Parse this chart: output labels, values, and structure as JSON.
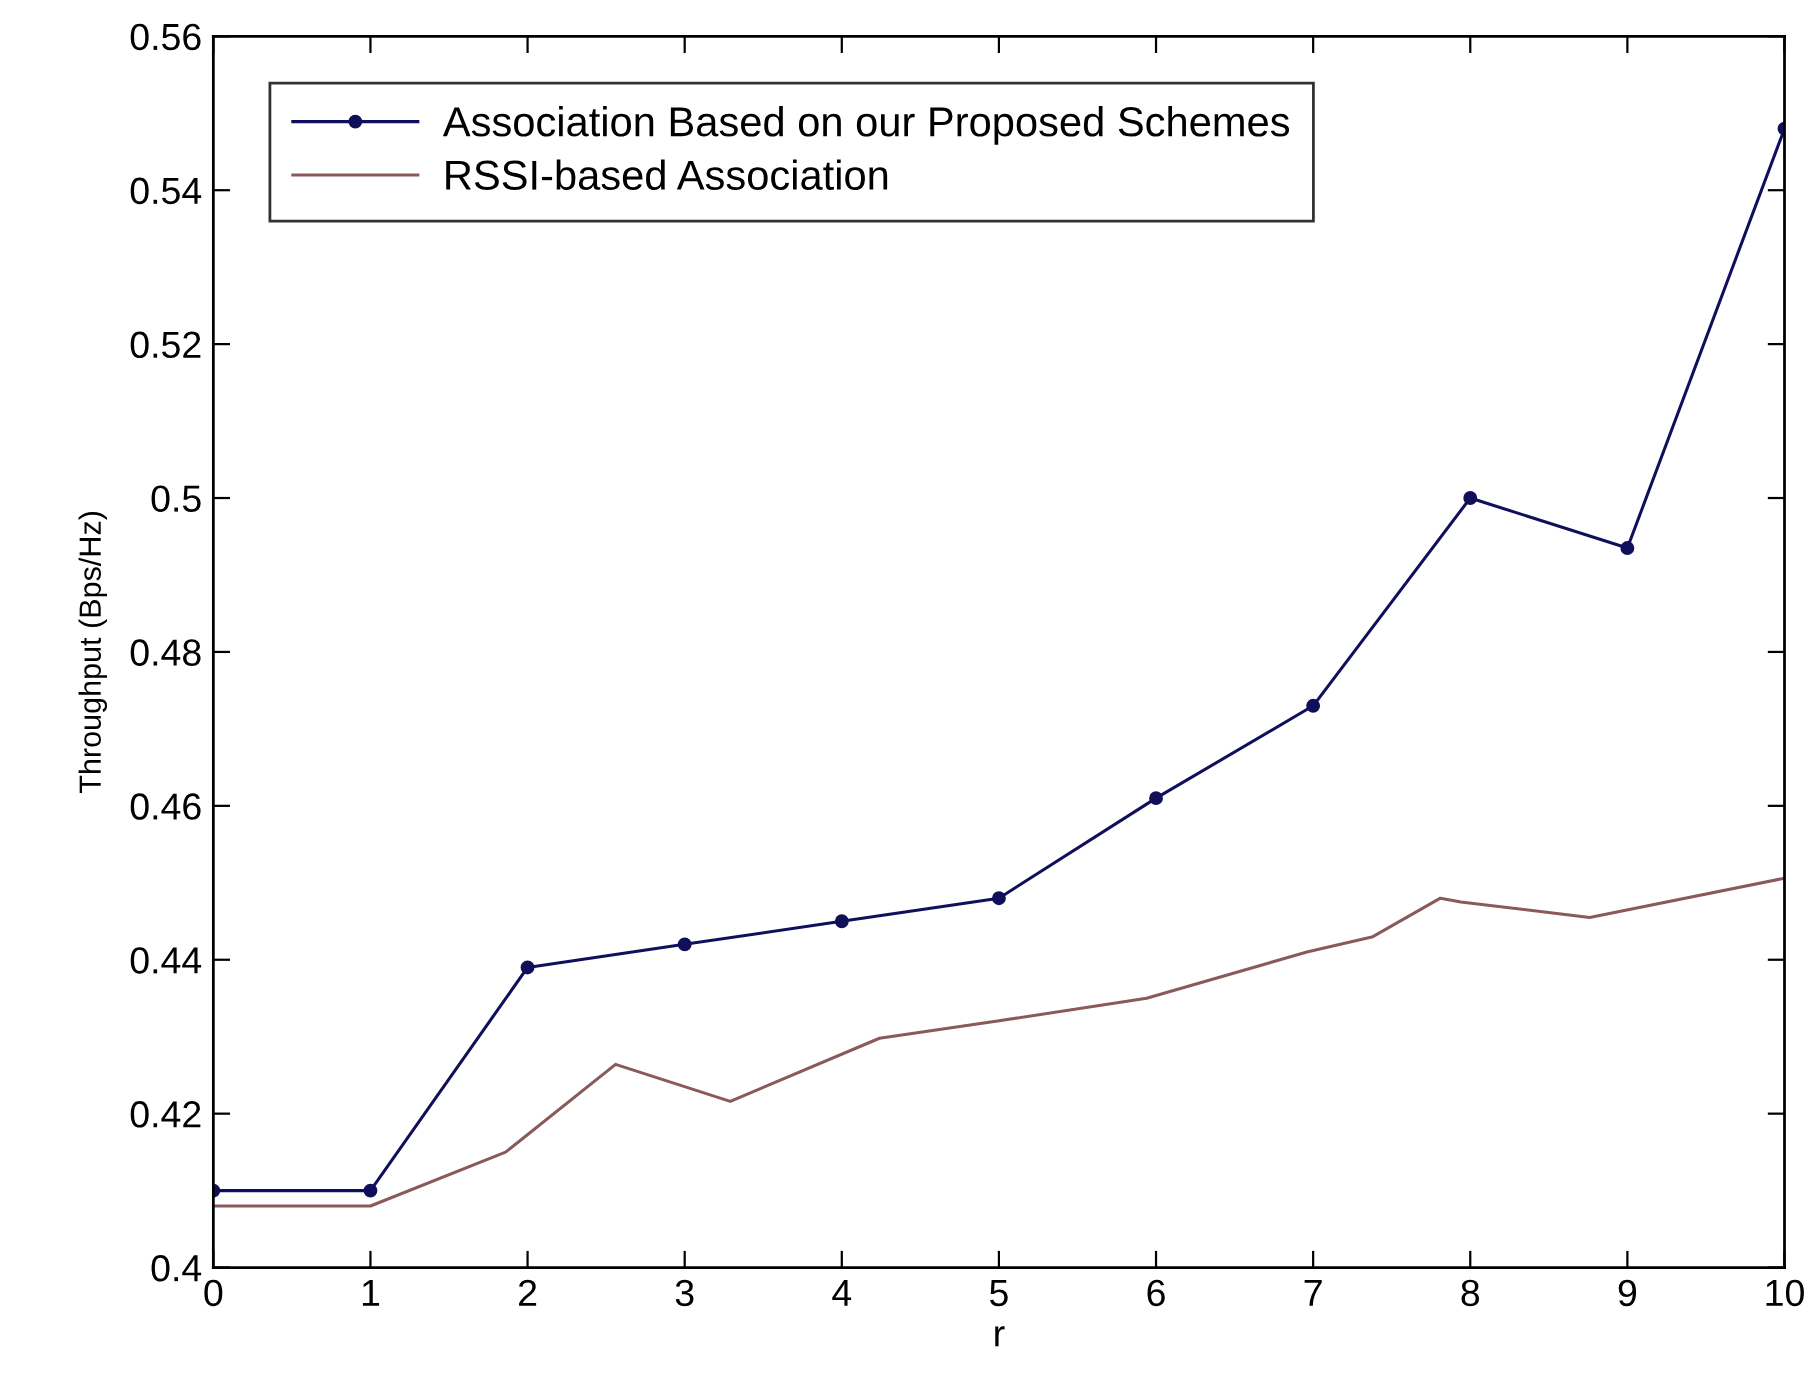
{
  "chart_data": {
    "type": "line",
    "xlabel": "r",
    "ylabel": "Throughput (Bps/Hz)",
    "xlim": [
      0,
      10
    ],
    "ylim": [
      0.4,
      0.56
    ],
    "xticks": [
      0,
      1,
      2,
      3,
      4,
      5,
      6,
      7,
      8,
      9,
      10
    ],
    "yticks": [
      0.4,
      0.42,
      0.44,
      0.46,
      0.48,
      0.5,
      0.52,
      0.54,
      0.56
    ],
    "grid": false,
    "legend": "top left",
    "line_style": "solid",
    "series": [
      {
        "name": "Association Based on our Proposed Schemes",
        "color": "#10105a",
        "marker": "circle",
        "x": [
          0,
          1,
          2,
          3,
          4,
          5,
          6,
          7,
          8,
          9,
          10
        ],
        "values": [
          0.41,
          0.41,
          0.439,
          0.442,
          0.445,
          0.448,
          0.461,
          0.473,
          0.5,
          0.4935,
          0.548
        ]
      },
      {
        "name": "RSSI-based Association",
        "color": "#8a5a5a",
        "marker": "none",
        "x": [
          0,
          1,
          1.86,
          2.56,
          3.29,
          4.24,
          4.98,
          5.94,
          6.96,
          7.38,
          7.81,
          7.94,
          8.76,
          10
        ],
        "values": [
          0.408,
          0.408,
          0.415,
          0.4264,
          0.4216,
          0.4298,
          0.432,
          0.435,
          0.441,
          0.443,
          0.448,
          0.4475,
          0.4455,
          0.4506
        ]
      }
    ]
  }
}
